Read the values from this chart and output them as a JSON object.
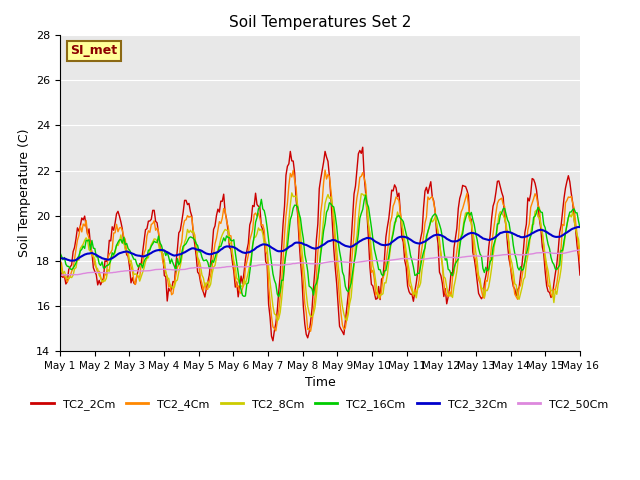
{
  "title": "Soil Temperatures Set 2",
  "xlabel": "Time",
  "ylabel": "Soil Temperature (C)",
  "ylim": [
    14,
    28
  ],
  "yticks": [
    14,
    16,
    18,
    20,
    22,
    24,
    26,
    28
  ],
  "background_color": "#ffffff",
  "plot_bg_color": "#e8e8e8",
  "annotation_text": "SI_met",
  "annotation_bg": "#ffff99",
  "annotation_border": "#8b6914",
  "series_colors": {
    "TC2_2Cm": "#cc0000",
    "TC2_4Cm": "#ff8800",
    "TC2_8Cm": "#cccc00",
    "TC2_16Cm": "#00cc00",
    "TC2_32Cm": "#0000cc",
    "TC2_50Cm": "#dd88dd"
  },
  "x_tick_labels": [
    "May 1",
    "May 2",
    "May 3",
    "May 4",
    "May 5",
    "May 6",
    "May 7",
    "May 8",
    "May 9",
    "May 10",
    "May 11",
    "May 12",
    "May 13",
    "May 14",
    "May 15",
    "May 16"
  ],
  "n_days": 15,
  "pts_per_day": 24
}
